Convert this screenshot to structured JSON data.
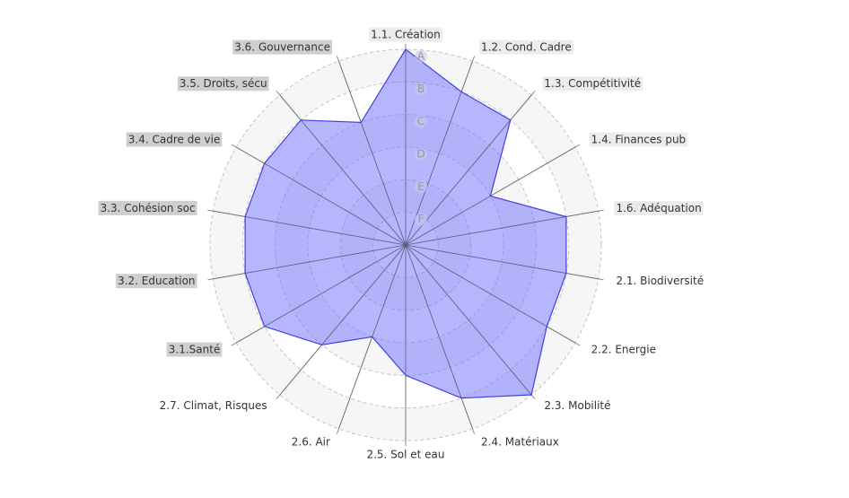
{
  "chart_data": {
    "type": "radar",
    "categories": [
      "1.1. Création",
      "1.2. Cond. Cadre",
      "1.3. Compétitivité",
      "1.4. Finances pub",
      "1.6. Adéquation",
      "2.1. Biodiversité",
      "2.2. Energie",
      "2.3. Mobilité",
      "2.4. Matériaux",
      "2.5. Sol et eau",
      "2.6. Air",
      "2.7. Climat, Risques",
      "3.1.Santé",
      "3.2. Education",
      "3.3. Cohésion soc",
      "3.4. Cadre de vie",
      "3.5. Droits, sécu",
      "3.6. Gouvernance"
    ],
    "label_backgrounds": [
      "#ececec",
      "#ececec",
      "#ececec",
      "#ececec",
      "#ececec",
      null,
      null,
      null,
      null,
      null,
      null,
      null,
      "#cfcfcf",
      "#cfcfcf",
      "#cfcfcf",
      "#cfcfcf",
      "#cfcfcf",
      "#cfcfcf"
    ],
    "values": [
      6,
      5,
      5,
      3,
      5,
      5,
      5,
      6,
      5,
      4,
      3,
      4,
      5,
      5,
      5,
      5,
      5,
      4
    ],
    "color": "#4040e0",
    "fill": "rgba(110,110,255,0.5)",
    "rlim": [
      0,
      6
    ],
    "rticks": [
      {
        "value": 1,
        "label": "F"
      },
      {
        "value": 2,
        "label": "E"
      },
      {
        "value": 3,
        "label": "D"
      },
      {
        "value": 4,
        "label": "C"
      },
      {
        "value": 5,
        "label": "B"
      },
      {
        "value": 6,
        "label": "A"
      }
    ],
    "grid": true
  }
}
